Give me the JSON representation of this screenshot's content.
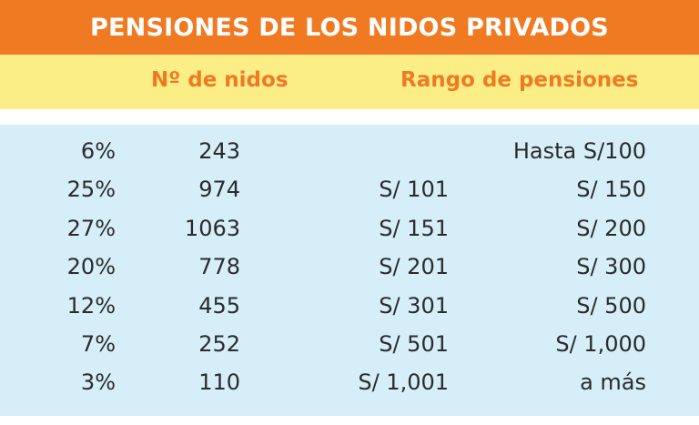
{
  "title": "PENSIONES DE LOS NIDOS PRIVADOS",
  "headers": {
    "count": "Nº de nidos",
    "range": "Rango de pensiones"
  },
  "colors": {
    "title_bg": "#f07a22",
    "header_bg": "#fcee86",
    "header_text": "#f07a22",
    "body_bg": "#d6eef8",
    "body_text": "#2b2b2b"
  },
  "chart_data": {
    "type": "table",
    "title": "PENSIONES DE LOS NIDOS PRIVADOS",
    "columns": [
      "",
      "Nº de nidos",
      "Rango de pensiones",
      ""
    ],
    "rows": [
      {
        "percent": "6%",
        "count": "243",
        "from": "",
        "to": "Hasta S/100"
      },
      {
        "percent": "25%",
        "count": "974",
        "from": "S/ 101",
        "to": "S/ 150"
      },
      {
        "percent": "27%",
        "count": "1063",
        "from": "S/ 151",
        "to": "S/ 200"
      },
      {
        "percent": "20%",
        "count": "778",
        "from": "S/ 201",
        "to": "S/ 300"
      },
      {
        "percent": "12%",
        "count": "455",
        "from": "S/ 301",
        "to": "S/ 500"
      },
      {
        "percent": "7%",
        "count": "252",
        "from": "S/ 501",
        "to": "S/ 1,000"
      },
      {
        "percent": "3%",
        "count": "110",
        "from": "S/ 1,001",
        "to": "a más"
      }
    ]
  }
}
